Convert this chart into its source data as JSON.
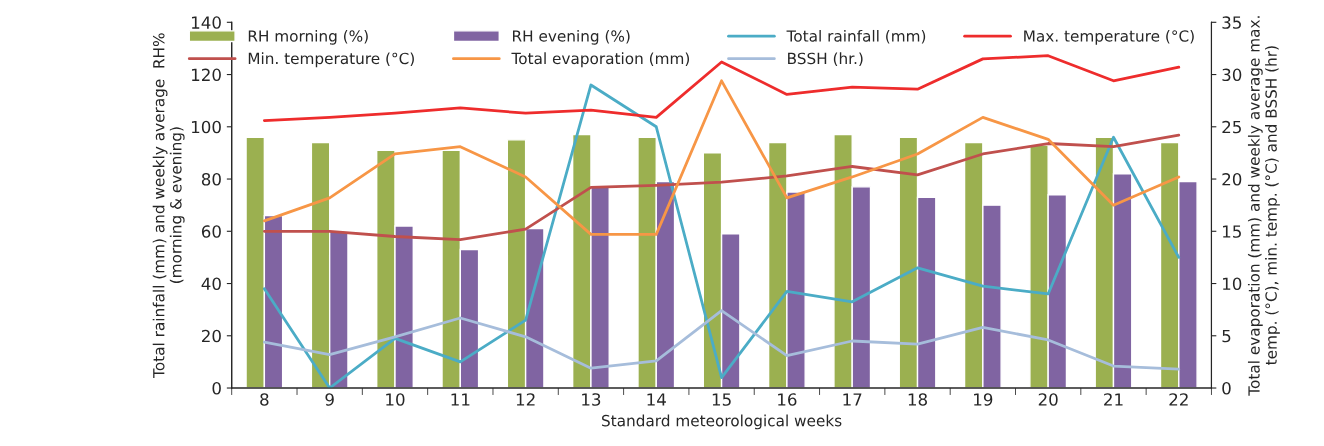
{
  "chart_data": {
    "type": "bar",
    "categories": [
      "8",
      "9",
      "10",
      "11",
      "12",
      "13",
      "14",
      "15",
      "16",
      "17",
      "18",
      "19",
      "20",
      "21",
      "22"
    ],
    "xlabel": "Standard meteorological weeks",
    "ylabel": "Total rainfall (mm) and weekly average  RH%\n(morning & evening)",
    "y2label": "Total evaporation (mm) and weekly average max.\ntemp. (°C), min. temp. (°C) and BSSH (hr)",
    "ylim": [
      0,
      140
    ],
    "yticks": [
      0,
      20,
      40,
      60,
      80,
      100,
      120,
      140
    ],
    "y2lim": [
      0,
      35
    ],
    "y2ticks": [
      0,
      5,
      10,
      15,
      20,
      25,
      30,
      35
    ],
    "grid": false,
    "legend": "top",
    "series": [
      {
        "name": "RH morning (%)",
        "color": "#9bb050",
        "values": [
          96,
          94,
          91,
          91,
          95,
          97,
          96,
          90,
          94,
          97,
          96,
          94,
          93,
          96,
          94
        ]
      },
      {
        "name": "Min. temperature (°C)",
        "type": "line",
        "axis": "y2",
        "color": "#c0504d",
        "values": [
          15.0,
          15.0,
          14.5,
          14.2,
          15.2,
          19.2,
          19.4,
          19.7,
          20.3,
          21.2,
          20.4,
          22.4,
          23.4,
          23.1,
          24.2
        ]
      },
      {
        "name": "RH evening (%)",
        "color": "#8064a2",
        "values": [
          66,
          60,
          62,
          53,
          61,
          77,
          79,
          59,
          75,
          77,
          73,
          70,
          74,
          82,
          79
        ]
      },
      {
        "name": "Total evaporation (mm)",
        "type": "line",
        "axis": "y2",
        "color": "#f79646",
        "values": [
          16.0,
          18.2,
          22.4,
          23.1,
          20.2,
          14.7,
          14.7,
          29.4,
          18.2,
          20.2,
          22.4,
          25.9,
          23.8,
          17.5,
          20.2
        ]
      },
      {
        "name": "Total rainfall (mm)",
        "type": "line",
        "color": "#4bacc6",
        "values": [
          38,
          0,
          19,
          10,
          26,
          116,
          100,
          4,
          37,
          33,
          46,
          39,
          36,
          96,
          50
        ]
      },
      {
        "name": "BSSH (hr.)",
        "type": "line",
        "axis": "y2",
        "color": "#a6bddb",
        "values": [
          4.4,
          3.2,
          4.9,
          6.7,
          4.9,
          1.9,
          2.6,
          7.4,
          3.1,
          4.5,
          4.2,
          5.8,
          4.6,
          2.1,
          1.8
        ]
      },
      {
        "name": "Max. temperature (°C)",
        "type": "line",
        "axis": "y2",
        "color": "#ee2c2c",
        "values": [
          25.6,
          25.9,
          26.3,
          26.8,
          26.3,
          26.6,
          25.9,
          31.2,
          28.1,
          28.8,
          28.6,
          31.5,
          31.8,
          29.4,
          30.7
        ]
      }
    ]
  }
}
